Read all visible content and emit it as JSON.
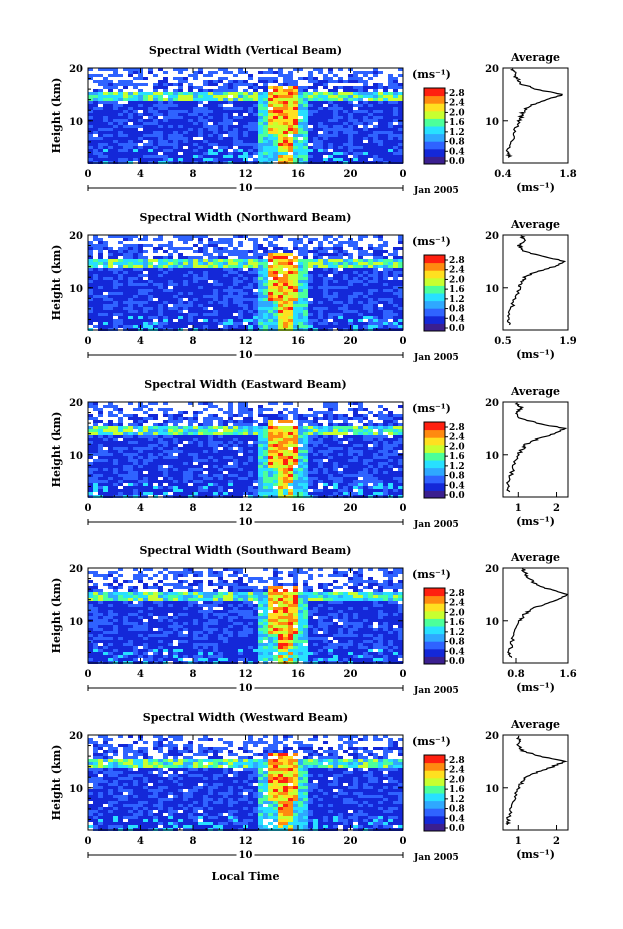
{
  "chart_data": [
    {
      "type": "heatmap",
      "title": "Spectral Width (Vertical Beam)",
      "ylabel": "Height (km)",
      "yticks": [
        "20",
        "10"
      ],
      "xticks": [
        "0",
        "4",
        "8",
        "12",
        "16",
        "20",
        "0"
      ],
      "xlim": [
        0,
        24
      ],
      "ylim": [
        2,
        20
      ],
      "day_label": "10",
      "month_label": "Jan 2005",
      "colorbar": {
        "unit": "(ms⁻¹)",
        "ticks": [
          "2.8",
          "2.4",
          "2.0",
          "1.6",
          "1.2",
          "0.8",
          "0.4",
          "0.0"
        ]
      },
      "profile": {
        "title": "Average",
        "xticks": [
          "0.4",
          "1.8"
        ],
        "xlim": [
          0.4,
          1.8
        ],
        "xlabel": "(ms⁻¹)",
        "yticks": [
          "20",
          "10"
        ],
        "heights": [
          3,
          4,
          6,
          8,
          10,
          11,
          12,
          13,
          14,
          15,
          16,
          17,
          18,
          19,
          20
        ],
        "values": [
          0.55,
          0.5,
          0.58,
          0.65,
          0.75,
          0.8,
          0.85,
          1.0,
          1.35,
          1.7,
          1.1,
          0.8,
          0.7,
          0.65,
          0.6
        ]
      }
    },
    {
      "type": "heatmap",
      "title": "Spectral Width (Northward Beam)",
      "ylabel": "Height (km)",
      "yticks": [
        "20",
        "10"
      ],
      "xticks": [
        "0",
        "4",
        "8",
        "12",
        "16",
        "20",
        "0"
      ],
      "xlim": [
        0,
        24
      ],
      "ylim": [
        2,
        20
      ],
      "day_label": "10",
      "month_label": "Jan 2005",
      "colorbar": {
        "unit": "(ms⁻¹)",
        "ticks": [
          "2.8",
          "2.4",
          "2.0",
          "1.6",
          "1.2",
          "0.8",
          "0.4",
          "0.0"
        ]
      },
      "profile": {
        "title": "Average",
        "xticks": [
          "0.5",
          "1.9"
        ],
        "xlim": [
          0.5,
          1.9
        ],
        "xlabel": "(ms⁻¹)",
        "yticks": [
          "20",
          "10"
        ],
        "heights": [
          3,
          4,
          6,
          8,
          10,
          11,
          12,
          13,
          14,
          15,
          16,
          17,
          18,
          19,
          20
        ],
        "values": [
          0.65,
          0.6,
          0.68,
          0.75,
          0.85,
          0.9,
          0.98,
          1.2,
          1.6,
          1.85,
          1.3,
          0.95,
          0.85,
          0.95,
          0.9
        ]
      }
    },
    {
      "type": "heatmap",
      "title": "Spectral Width (Eastward Beam)",
      "ylabel": "Height (km)",
      "yticks": [
        "20",
        "10"
      ],
      "xticks": [
        "0",
        "4",
        "8",
        "12",
        "16",
        "20",
        "0"
      ],
      "xlim": [
        0,
        24
      ],
      "ylim": [
        2,
        20
      ],
      "day_label": "10",
      "month_label": "Jan 2005",
      "colorbar": {
        "unit": "(ms⁻¹)",
        "ticks": [
          "2.8",
          "2.4",
          "2.0",
          "1.6",
          "1.2",
          "0.8",
          "0.4",
          "0.0"
        ]
      },
      "profile": {
        "title": "Average",
        "xticks": [
          "1",
          "2"
        ],
        "xlim": [
          0.6,
          2.3
        ],
        "xlabel": "(ms⁻¹)",
        "yticks": [
          "20",
          "10"
        ],
        "heights": [
          3,
          4,
          6,
          8,
          10,
          11,
          12,
          13,
          14,
          15,
          16,
          17,
          18,
          19,
          20
        ],
        "values": [
          0.75,
          0.72,
          0.8,
          0.88,
          1.0,
          1.1,
          1.2,
          1.5,
          1.95,
          2.2,
          1.5,
          1.05,
          0.95,
          1.1,
          0.9
        ]
      }
    },
    {
      "type": "heatmap",
      "title": "Spectral Width (Southward Beam)",
      "ylabel": "Height (km)",
      "yticks": [
        "20",
        "10"
      ],
      "xticks": [
        "0",
        "4",
        "8",
        "12",
        "16",
        "20",
        "0"
      ],
      "xlim": [
        0,
        24
      ],
      "ylim": [
        2,
        20
      ],
      "day_label": "10",
      "month_label": "Jan 2005",
      "colorbar": {
        "unit": "(ms⁻¹)",
        "ticks": [
          "2.8",
          "2.4",
          "2.0",
          "1.6",
          "1.2",
          "0.8",
          "0.4",
          "0.0"
        ]
      },
      "profile": {
        "title": "Average",
        "xticks": [
          "0.8",
          "1.6"
        ],
        "xlim": [
          0.6,
          1.6
        ],
        "xlabel": "(ms⁻¹)",
        "yticks": [
          "20",
          "10"
        ],
        "heights": [
          3,
          4,
          6,
          8,
          10,
          11,
          12,
          13,
          14,
          15,
          16,
          17,
          18,
          19,
          20
        ],
        "values": [
          0.72,
          0.7,
          0.74,
          0.78,
          0.85,
          0.92,
          1.0,
          1.2,
          1.45,
          1.58,
          1.3,
          1.1,
          1.0,
          0.95,
          0.9
        ]
      }
    },
    {
      "type": "heatmap",
      "title": "Spectral Width (Westward Beam)",
      "ylabel": "Height (km)",
      "yticks": [
        "20",
        "10"
      ],
      "xticks": [
        "0",
        "4",
        "8",
        "12",
        "16",
        "20",
        "0"
      ],
      "xlim": [
        0,
        24
      ],
      "ylim": [
        2,
        20
      ],
      "day_label": "10",
      "month_label": "Jan 2005",
      "colorbar": {
        "unit": "(ms⁻¹)",
        "ticks": [
          "2.8",
          "2.4",
          "2.0",
          "1.6",
          "1.2",
          "0.8",
          "0.4",
          "0.0"
        ]
      },
      "profile": {
        "title": "Average",
        "xticks": [
          "1",
          "2"
        ],
        "xlim": [
          0.6,
          2.3
        ],
        "xlabel": "(ms⁻¹)",
        "yticks": [
          "20",
          "10"
        ],
        "heights": [
          3,
          4,
          6,
          8,
          10,
          11,
          12,
          13,
          14,
          15,
          16,
          17,
          18,
          19,
          20
        ],
        "values": [
          0.75,
          0.72,
          0.8,
          0.9,
          1.0,
          1.1,
          1.2,
          1.5,
          1.9,
          2.2,
          1.55,
          1.1,
          1.0,
          1.05,
          0.95
        ]
      }
    }
  ],
  "footer": {
    "xlabel": "Local Time"
  },
  "colors": {
    "scale": [
      "#3b1f8f",
      "#1428d8",
      "#2f63ff",
      "#2fa8ff",
      "#28e0ff",
      "#4cff9a",
      "#c8ff30",
      "#ffe020",
      "#ff8a10",
      "#ff2010"
    ]
  }
}
